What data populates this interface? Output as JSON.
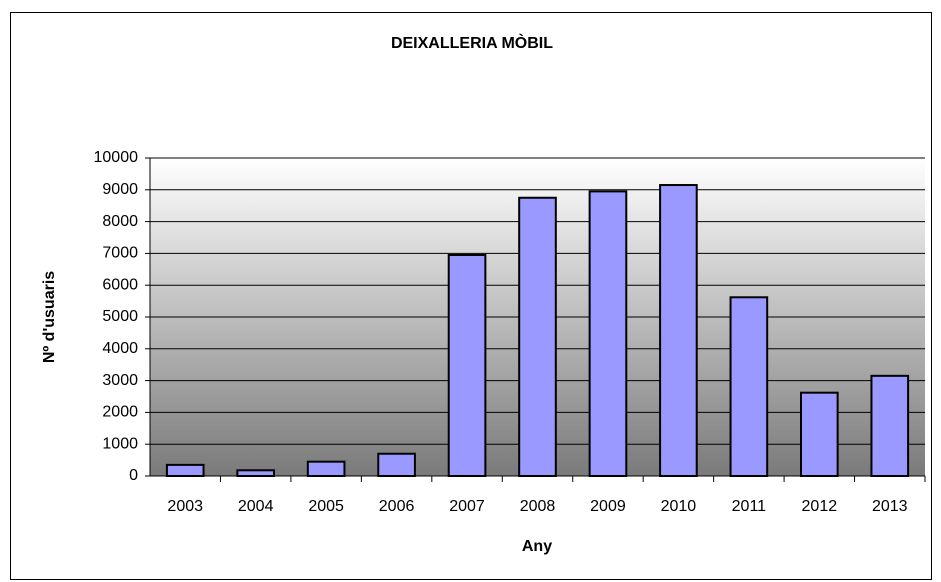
{
  "chart_data": {
    "type": "bar",
    "title": "DEIXALLERIA MÒBIL",
    "x_label": "Any",
    "y_label": "Nº d'usuaris",
    "categories": [
      "2003",
      "2004",
      "2005",
      "2006",
      "2007",
      "2008",
      "2009",
      "2010",
      "2011",
      "2012",
      "2013"
    ],
    "values": [
      350,
      180,
      450,
      700,
      6950,
      8750,
      8950,
      9150,
      5620,
      2620,
      3150
    ],
    "color": "#9999ff",
    "ylim": [
      0,
      10000
    ],
    "yticks": [
      0,
      1000,
      2000,
      3000,
      4000,
      5000,
      6000,
      7000,
      8000,
      9000,
      10000
    ],
    "grid": true
  }
}
